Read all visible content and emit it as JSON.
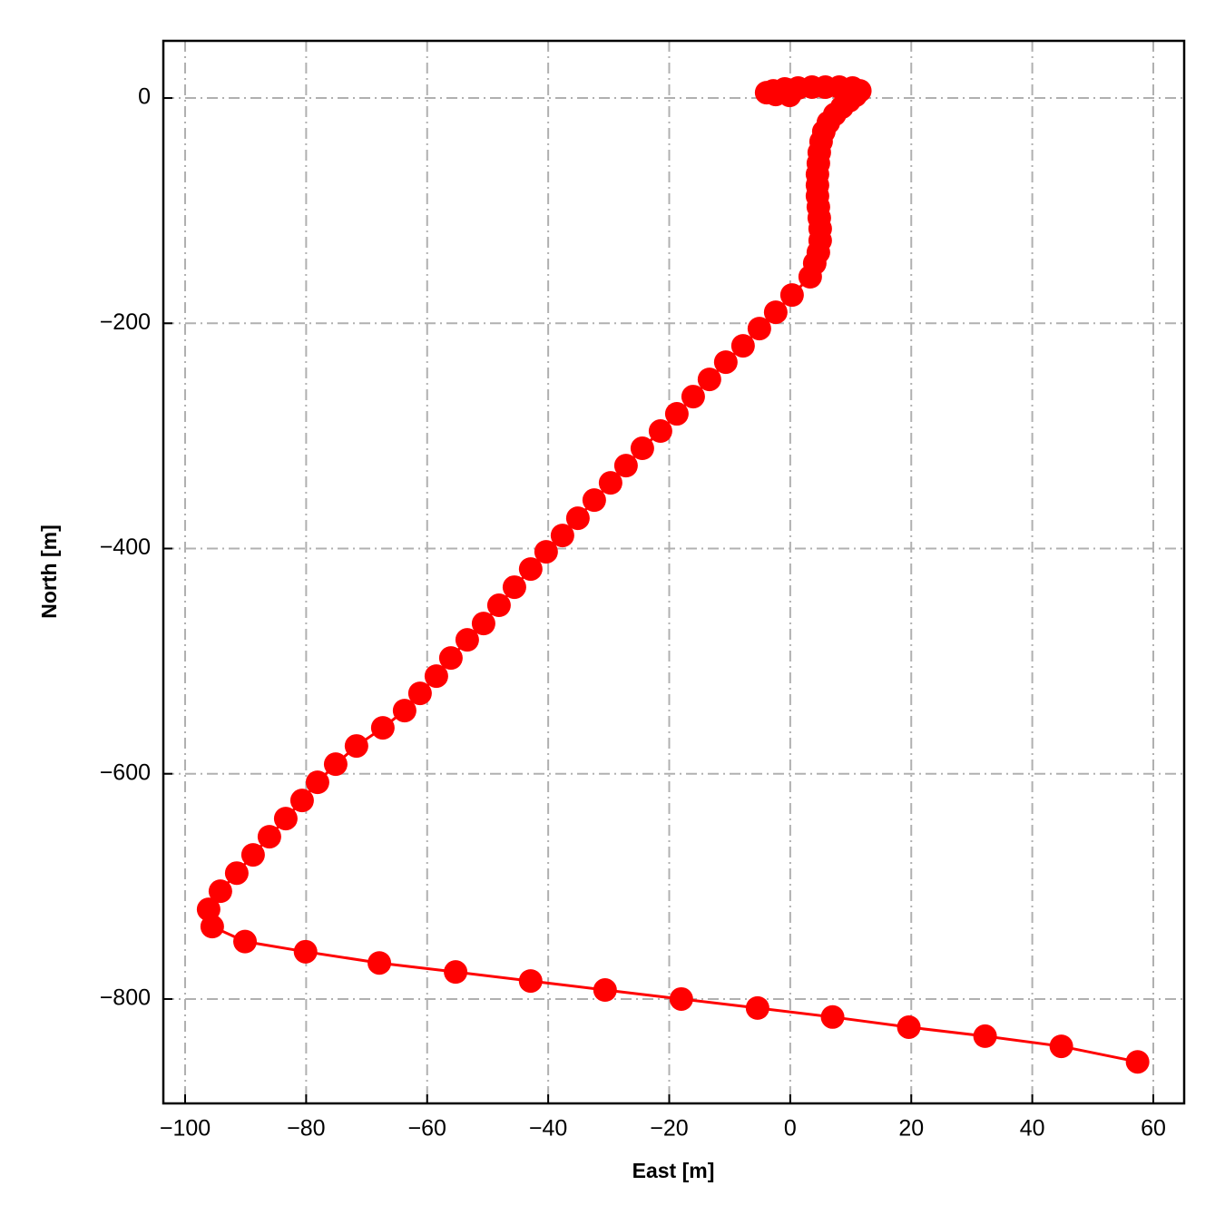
{
  "chart_data": {
    "type": "line",
    "xlabel": "East [m]",
    "ylabel": "North [m]",
    "x": [
      -0.1,
      -2.4,
      -3.9,
      -2.8,
      -0.9,
      1.3,
      3.6,
      5.8,
      8.1,
      10.3,
      11.5,
      10.8,
      9.75,
      8.55,
      7.35,
      6.3,
      5.55,
      5.1,
      4.8,
      4.65,
      4.5,
      4.5,
      4.5,
      4.65,
      4.8,
      4.95,
      4.95,
      4.65,
      4.05,
      3.3,
      0.3,
      -2.4,
      -5.1,
      -7.8,
      -10.65,
      -13.35,
      -16.04,
      -18.74,
      -21.44,
      -24.44,
      -27.14,
      -29.69,
      -32.39,
      -35.09,
      -37.64,
      -40.34,
      -42.89,
      -45.58,
      -48.13,
      -50.68,
      -53.38,
      -56.08,
      -58.48,
      -61.18,
      -63.73,
      -67.33,
      -71.68,
      -75.12,
      -78.12,
      -80.67,
      -83.37,
      -86.07,
      -88.77,
      -91.47,
      -94.17,
      -96.12,
      -95.52,
      -90.1,
      -80.1,
      -67.9,
      -55.3,
      -42.9,
      -30.6,
      -18.0,
      -5.4,
      7.0,
      19.6,
      32.2,
      44.8,
      57.4
    ],
    "series": [
      {
        "color": "#ff0000",
        "values": [
          2.4,
          3.2,
          4.8,
          6.4,
          8.1,
          8.9,
          9.7,
          9.7,
          9.7,
          8.9,
          6.4,
          2.4,
          -2.4,
          -8.1,
          -14.5,
          -21.8,
          -29.8,
          -38.7,
          -48.3,
          -58.0,
          -67.7,
          -77.4,
          -87.0,
          -96.7,
          -106.4,
          -116.0,
          -126.5,
          -137.0,
          -146.7,
          -158.7,
          -174.9,
          -190.2,
          -204.7,
          -220.0,
          -234.5,
          -249.8,
          -265.1,
          -280.4,
          -295.7,
          -311.0,
          -326.4,
          -341.7,
          -357.0,
          -373.1,
          -388.4,
          -402.9,
          -418.2,
          -434.3,
          -450.4,
          -466.6,
          -481.1,
          -497.2,
          -513.3,
          -528.6,
          -543.9,
          -559.2,
          -575.3,
          -591.5,
          -607.6,
          -623.7,
          -639.8,
          -655.9,
          -672.0,
          -688.2,
          -704.3,
          -720.4,
          -735.7,
          -749,
          -758,
          -768,
          -776,
          -784,
          -792,
          -800,
          -808,
          -816,
          -825,
          -833,
          -842,
          -855.8
        ]
      }
    ],
    "xlim": [
      -103.6,
      65.1
    ],
    "ylim": [
      -892.7,
      50.8
    ],
    "xticks": [
      {
        "value": -100,
        "label": "−100"
      },
      {
        "value": -80,
        "label": "−80"
      },
      {
        "value": -60,
        "label": "−60"
      },
      {
        "value": -40,
        "label": "−40"
      },
      {
        "value": -20,
        "label": "−20"
      },
      0,
      20,
      40,
      60
    ],
    "yticks": [
      0,
      {
        "value": -200,
        "label": "−200"
      },
      {
        "value": -400,
        "label": "−400"
      },
      {
        "value": -600,
        "label": "−600"
      },
      {
        "value": -800,
        "label": "−800"
      }
    ],
    "grid": true
  }
}
